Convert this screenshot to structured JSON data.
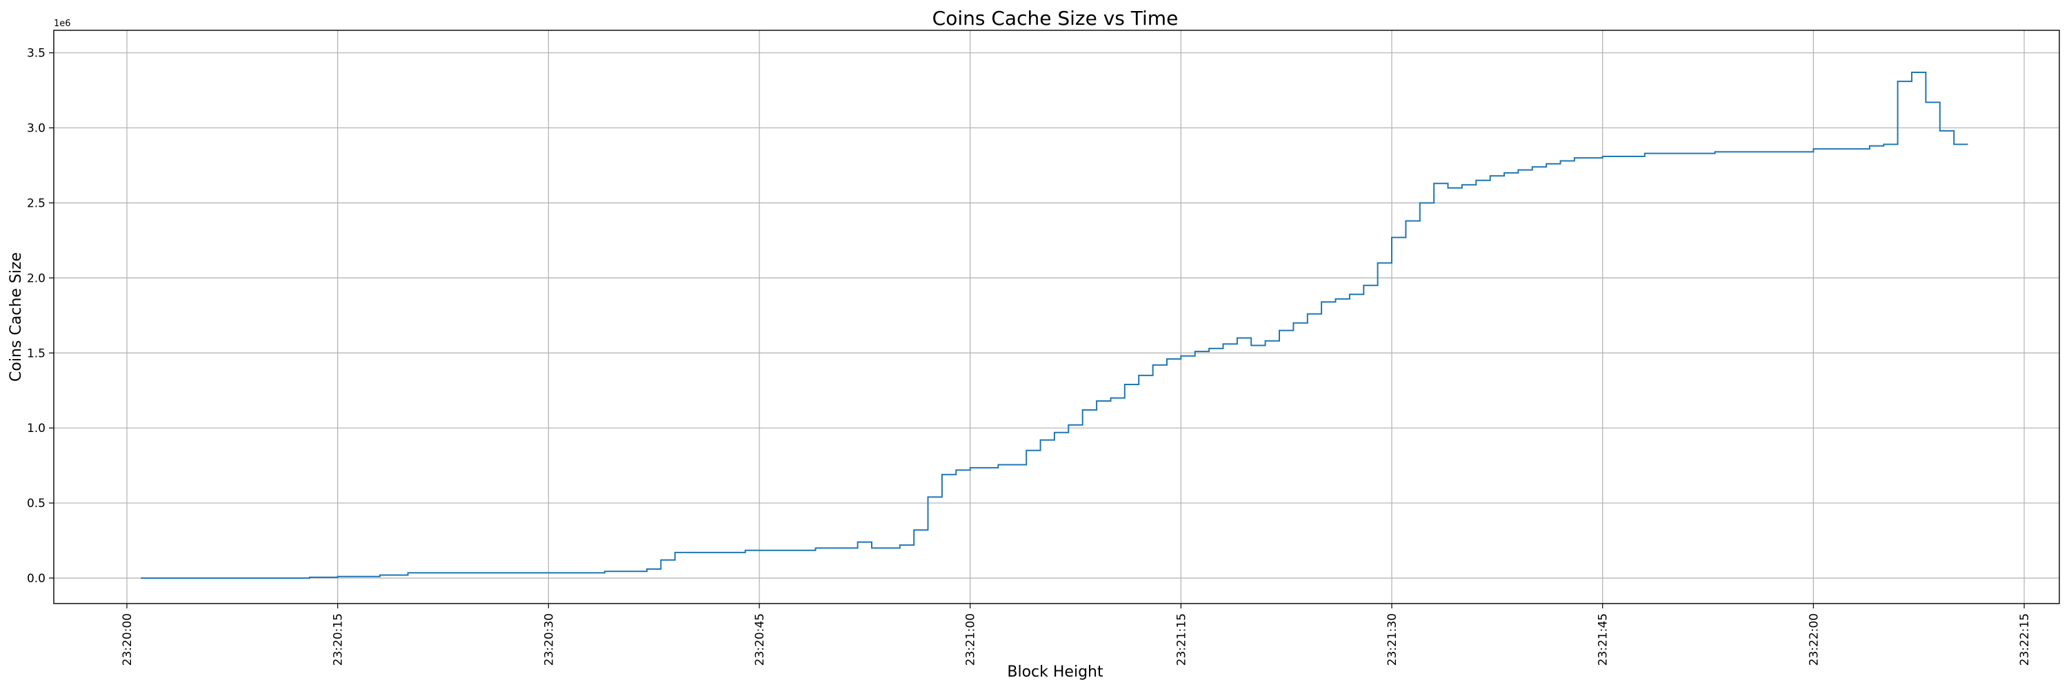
{
  "chart_data": {
    "type": "line",
    "title": "Coins Cache Size vs Time",
    "xlabel": "Block Height",
    "ylabel": "Coins Cache Size",
    "y_offset_label": "1e6",
    "step": true,
    "grid": true,
    "series_color": "#1f77b4",
    "x_tick_labels": [
      "23:20:00",
      "23:20:15",
      "23:20:30",
      "23:20:45",
      "23:21:00",
      "23:21:15",
      "23:21:30",
      "23:21:45",
      "23:22:00",
      "23:22:15"
    ],
    "y_tick_labels": [
      "0.0",
      "0.5",
      "1.0",
      "1.5",
      "2.0",
      "2.5",
      "3.0",
      "3.5"
    ],
    "y_ticks": [
      0,
      0.5,
      1.0,
      1.5,
      2.0,
      2.5,
      3.0,
      3.5
    ],
    "ylim": [
      -0.17,
      3.65
    ],
    "xlim_seconds": [
      -5.2,
      137.5
    ],
    "series": [
      {
        "x": [
          "23:20:01",
          "23:20:13",
          "23:20:15",
          "23:20:18",
          "23:20:20",
          "23:20:34",
          "23:20:37",
          "23:20:38",
          "23:20:39",
          "23:20:44",
          "23:20:49",
          "23:20:52",
          "23:20:53",
          "23:20:55",
          "23:20:56",
          "23:20:57",
          "23:20:58",
          "23:20:59",
          "23:21:00",
          "23:21:02",
          "23:21:04",
          "23:21:05",
          "23:21:06",
          "23:21:07",
          "23:21:08",
          "23:21:09",
          "23:21:10",
          "23:21:11",
          "23:21:12",
          "23:21:13",
          "23:21:14",
          "23:21:15",
          "23:21:16",
          "23:21:17",
          "23:21:18",
          "23:21:19",
          "23:21:20",
          "23:21:21",
          "23:21:22",
          "23:21:23",
          "23:21:24",
          "23:21:25",
          "23:21:26",
          "23:21:27",
          "23:21:28",
          "23:21:29",
          "23:21:30",
          "23:21:31",
          "23:21:32",
          "23:21:33",
          "23:21:34",
          "23:21:35",
          "23:21:36",
          "23:21:37",
          "23:21:38",
          "23:21:39",
          "23:21:40",
          "23:21:41",
          "23:21:42",
          "23:21:43",
          "23:21:45",
          "23:21:48",
          "23:21:53",
          "23:22:00",
          "23:22:04",
          "23:22:05",
          "23:22:06",
          "23:22:07",
          "23:22:08",
          "23:22:09",
          "23:22:10",
          "23:22:11"
        ],
        "y": [
          0.0,
          0.005,
          0.01,
          0.02,
          0.035,
          0.045,
          0.06,
          0.12,
          0.17,
          0.185,
          0.2,
          0.24,
          0.2,
          0.22,
          0.32,
          0.54,
          0.69,
          0.72,
          0.735,
          0.755,
          0.85,
          0.92,
          0.97,
          1.02,
          1.12,
          1.18,
          1.2,
          1.29,
          1.35,
          1.42,
          1.46,
          1.48,
          1.51,
          1.53,
          1.56,
          1.6,
          1.55,
          1.58,
          1.65,
          1.7,
          1.76,
          1.84,
          1.86,
          1.89,
          1.95,
          2.1,
          2.27,
          2.38,
          2.5,
          2.63,
          2.6,
          2.62,
          2.65,
          2.68,
          2.7,
          2.72,
          2.74,
          2.76,
          2.78,
          2.8,
          2.81,
          2.83,
          2.84,
          2.86,
          2.88,
          2.89,
          3.31,
          3.37,
          3.17,
          2.98,
          2.89,
          2.89
        ]
      }
    ]
  }
}
